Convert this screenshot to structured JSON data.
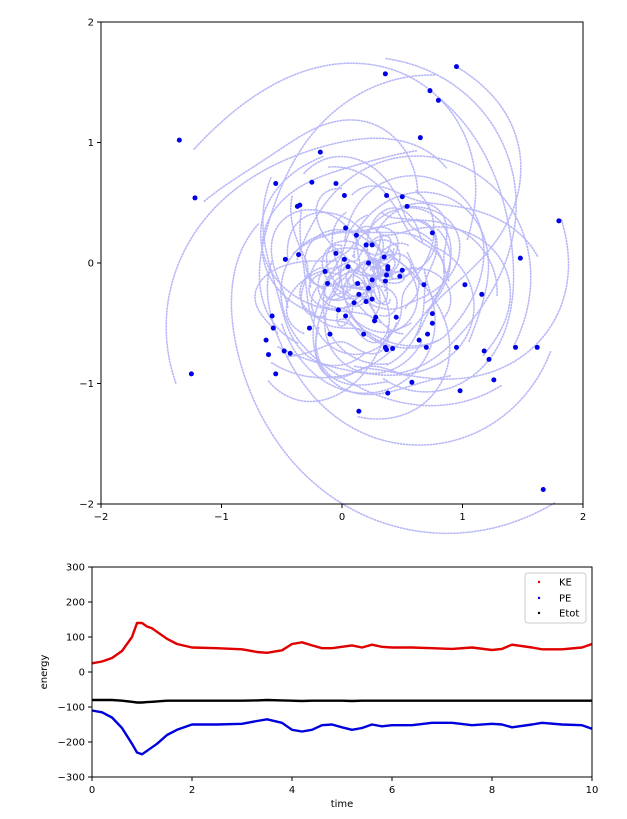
{
  "colors": {
    "trail": "#b8b8f8",
    "particle": "#0000e6",
    "ke": "#e00000",
    "pe": "#0000dd",
    "etot": "#000000"
  },
  "chart_data": [
    {
      "type": "scatter",
      "xlim": [
        -2,
        2
      ],
      "ylim": [
        -2,
        2
      ],
      "xticks": [
        "−2",
        "−1",
        "0",
        "1",
        "2"
      ],
      "yticks": [
        "−2",
        "−1",
        "0",
        "1",
        "2"
      ],
      "grid": false,
      "particles": [
        [
          0.95,
          1.63
        ],
        [
          0.36,
          1.57
        ],
        [
          0.73,
          1.43
        ],
        [
          0.8,
          1.35
        ],
        [
          0.65,
          1.04
        ],
        [
          -1.35,
          1.02
        ],
        [
          -0.18,
          0.92
        ],
        [
          -0.25,
          0.67
        ],
        [
          -0.05,
          0.66
        ],
        [
          -0.55,
          0.66
        ],
        [
          -1.22,
          0.54
        ],
        [
          0.37,
          0.56
        ],
        [
          0.5,
          0.55
        ],
        [
          0.02,
          0.56
        ],
        [
          0.54,
          0.47
        ],
        [
          -0.35,
          0.48
        ],
        [
          -0.37,
          0.47
        ],
        [
          0.03,
          0.29
        ],
        [
          0.75,
          0.25
        ],
        [
          1.8,
          0.35
        ],
        [
          0.2,
          0.15
        ],
        [
          0.25,
          0.15
        ],
        [
          0.12,
          0.23
        ],
        [
          -0.05,
          0.08
        ],
        [
          0.35,
          0.05
        ],
        [
          -0.47,
          0.03
        ],
        [
          0.02,
          0.03
        ],
        [
          1.48,
          0.04
        ],
        [
          -0.36,
          0.07
        ],
        [
          0.22,
          0.0
        ],
        [
          0.38,
          -0.03
        ],
        [
          0.38,
          -0.05
        ],
        [
          0.5,
          -0.06
        ],
        [
          -0.14,
          -0.07
        ],
        [
          0.05,
          -0.03
        ],
        [
          0.48,
          -0.11
        ],
        [
          0.25,
          -0.14
        ],
        [
          0.36,
          -0.15
        ],
        [
          0.37,
          -0.1
        ],
        [
          -0.12,
          -0.17
        ],
        [
          0.13,
          -0.17
        ],
        [
          0.68,
          -0.18
        ],
        [
          1.02,
          -0.18
        ],
        [
          0.14,
          -0.26
        ],
        [
          0.22,
          -0.21
        ],
        [
          1.16,
          -0.26
        ],
        [
          0.25,
          -0.3
        ],
        [
          0.1,
          -0.33
        ],
        [
          0.2,
          -0.32
        ],
        [
          -0.03,
          -0.39
        ],
        [
          0.03,
          -0.44
        ],
        [
          0.75,
          -0.42
        ],
        [
          0.45,
          -0.45
        ],
        [
          0.28,
          -0.45
        ],
        [
          0.27,
          -0.48
        ],
        [
          -0.58,
          -0.44
        ],
        [
          -0.57,
          -0.54
        ],
        [
          -0.27,
          -0.54
        ],
        [
          0.75,
          -0.5
        ],
        [
          0.71,
          -0.59
        ],
        [
          0.18,
          -0.59
        ],
        [
          -0.1,
          -0.59
        ],
        [
          -0.63,
          -0.64
        ],
        [
          0.64,
          -0.64
        ],
        [
          0.36,
          -0.7
        ],
        [
          0.37,
          -0.72
        ],
        [
          0.42,
          -0.71
        ],
        [
          0.7,
          -0.7
        ],
        [
          0.95,
          -0.7
        ],
        [
          1.44,
          -0.7
        ],
        [
          1.62,
          -0.7
        ],
        [
          -0.48,
          -0.73
        ],
        [
          -0.43,
          -0.75
        ],
        [
          -0.61,
          -0.76
        ],
        [
          1.18,
          -0.73
        ],
        [
          1.22,
          -0.8
        ],
        [
          -0.55,
          -0.92
        ],
        [
          -1.25,
          -0.92
        ],
        [
          1.26,
          -0.97
        ],
        [
          0.58,
          -0.99
        ],
        [
          0.98,
          -1.06
        ],
        [
          0.38,
          -1.08
        ],
        [
          0.14,
          -1.23
        ],
        [
          1.67,
          -1.88
        ]
      ]
    },
    {
      "type": "line",
      "xlabel": "time",
      "ylabel": "energy",
      "xlim": [
        0,
        10
      ],
      "ylim": [
        -300,
        300
      ],
      "xticks": [
        "0",
        "2",
        "4",
        "6",
        "8",
        "10"
      ],
      "yticks": [
        "−300",
        "−200",
        "−100",
        "0",
        "100",
        "200",
        "300"
      ],
      "legend_position": "top-right",
      "x": [
        0,
        0.2,
        0.4,
        0.6,
        0.8,
        0.9,
        1.0,
        1.1,
        1.2,
        1.3,
        1.5,
        1.7,
        2.0,
        2.5,
        3.0,
        3.3,
        3.5,
        3.8,
        4.0,
        4.2,
        4.4,
        4.6,
        4.8,
        5.0,
        5.2,
        5.4,
        5.6,
        5.8,
        6.0,
        6.4,
        6.8,
        7.2,
        7.6,
        8.0,
        8.2,
        8.4,
        8.8,
        9.0,
        9.4,
        9.8,
        10.0
      ],
      "series": [
        {
          "name": "KE",
          "values": [
            25,
            30,
            40,
            60,
            100,
            140,
            140,
            130,
            125,
            115,
            95,
            80,
            70,
            68,
            65,
            57,
            55,
            62,
            80,
            85,
            76,
            68,
            68,
            72,
            76,
            70,
            78,
            72,
            70,
            70,
            68,
            66,
            70,
            63,
            66,
            78,
            70,
            65,
            65,
            70,
            80
          ]
        },
        {
          "name": "PE",
          "values": [
            -110,
            -115,
            -130,
            -160,
            -205,
            -230,
            -235,
            -225,
            -215,
            -205,
            -180,
            -165,
            -150,
            -150,
            -148,
            -140,
            -135,
            -145,
            -165,
            -170,
            -165,
            -152,
            -150,
            -158,
            -165,
            -160,
            -150,
            -155,
            -152,
            -152,
            -145,
            -145,
            -152,
            -148,
            -150,
            -158,
            -150,
            -145,
            -150,
            -152,
            -162
          ]
        },
        {
          "name": "Etot",
          "values": [
            -80,
            -80,
            -80,
            -82,
            -85,
            -87,
            -87,
            -86,
            -85,
            -84,
            -82,
            -82,
            -82,
            -82,
            -82,
            -81,
            -80,
            -81,
            -82,
            -83,
            -82,
            -82,
            -82,
            -82,
            -83,
            -82,
            -82,
            -82,
            -82,
            -82,
            -82,
            -82,
            -82,
            -82,
            -82,
            -82,
            -82,
            -82,
            -82,
            -82,
            -82
          ]
        }
      ]
    }
  ]
}
